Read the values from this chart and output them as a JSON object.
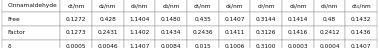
{
  "headers": [
    "Cinnamaldehyde",
    "d₁/nm",
    "d₂/nm",
    "d₃/nm",
    "d₄/nm",
    "d₅/nm",
    "d₆/nm",
    "d₇/nm",
    "d₈/nm",
    "d₉/nm",
    "d₁₀/nm"
  ],
  "rows": [
    [
      "Free",
      "0.1272",
      "0.428",
      "1.1404",
      "0.1480",
      "0.435",
      "0.1407",
      "0.3144",
      "0.1414",
      "0.48",
      "0.1432"
    ],
    [
      "Factor",
      "0.1273",
      "0.2431",
      "1.1402",
      "0.1434",
      "0.2436",
      "0.1411",
      "0.3126",
      "0.1416",
      "0.2412",
      "0.1436"
    ],
    [
      "δ",
      "0.0005",
      "0.0046",
      "1.1407",
      "0.0084",
      "0.015",
      "0.1006",
      "0.3100",
      "0.0003",
      "0.0004",
      "0.1407"
    ]
  ],
  "font_size": 4.2,
  "bg_header": "#ffffff",
  "bg_body": "#ffffff",
  "border_color": "#888888",
  "text_color": "#111111",
  "fig_width": 3.79,
  "fig_height": 0.48,
  "dpi": 100
}
